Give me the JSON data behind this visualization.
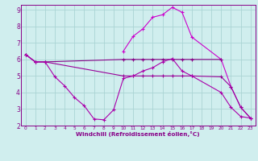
{
  "line1": {
    "x": [
      0,
      1,
      2,
      10,
      11,
      12,
      13,
      14,
      15,
      16,
      17,
      20
    ],
    "y": [
      6.3,
      5.85,
      5.85,
      6.0,
      6.0,
      6.0,
      6.0,
      6.0,
      6.0,
      6.0,
      6.0,
      6.0
    ],
    "color": "#880088"
  },
  "line2": {
    "x": [
      0,
      1,
      2,
      3,
      4,
      5,
      6,
      7,
      8,
      9,
      10,
      11,
      12,
      13,
      14,
      15,
      16,
      17,
      20,
      21,
      22,
      23
    ],
    "y": [
      6.3,
      5.85,
      5.85,
      4.95,
      4.4,
      3.7,
      3.2,
      2.4,
      2.35,
      2.95,
      4.85,
      5.0,
      5.3,
      5.5,
      5.85,
      6.05,
      5.3,
      5.0,
      4.0,
      3.1,
      2.55,
      2.45
    ],
    "color": "#aa00aa"
  },
  "line3": {
    "x": [
      0,
      1,
      2,
      10,
      11,
      12,
      13,
      14,
      15,
      16,
      17,
      20,
      21,
      22,
      23
    ],
    "y": [
      6.3,
      5.85,
      5.85,
      5.0,
      5.0,
      5.0,
      5.0,
      5.0,
      5.0,
      5.0,
      5.0,
      4.95,
      4.35,
      3.1,
      2.45
    ],
    "color": "#990099"
  },
  "line4": {
    "x": [
      10,
      11,
      12,
      13,
      14,
      15,
      16,
      17,
      20,
      21,
      22,
      23
    ],
    "y": [
      6.5,
      7.4,
      7.85,
      8.55,
      8.7,
      9.15,
      8.85,
      7.35,
      6.0,
      4.35,
      3.1,
      2.45
    ],
    "color": "#cc00cc"
  },
  "bg_color": "#d0eeee",
  "grid_color": "#aad4d4",
  "line_color": "#880088",
  "xlabel": "Windchill (Refroidissement éolien,°C)",
  "xlim": [
    -0.5,
    23.5
  ],
  "ylim": [
    2,
    9.3
  ],
  "xticks": [
    0,
    1,
    2,
    3,
    4,
    5,
    6,
    7,
    8,
    9,
    10,
    11,
    12,
    13,
    14,
    15,
    16,
    17,
    18,
    19,
    20,
    21,
    22,
    23
  ],
  "yticks": [
    2,
    3,
    4,
    5,
    6,
    7,
    8,
    9
  ]
}
